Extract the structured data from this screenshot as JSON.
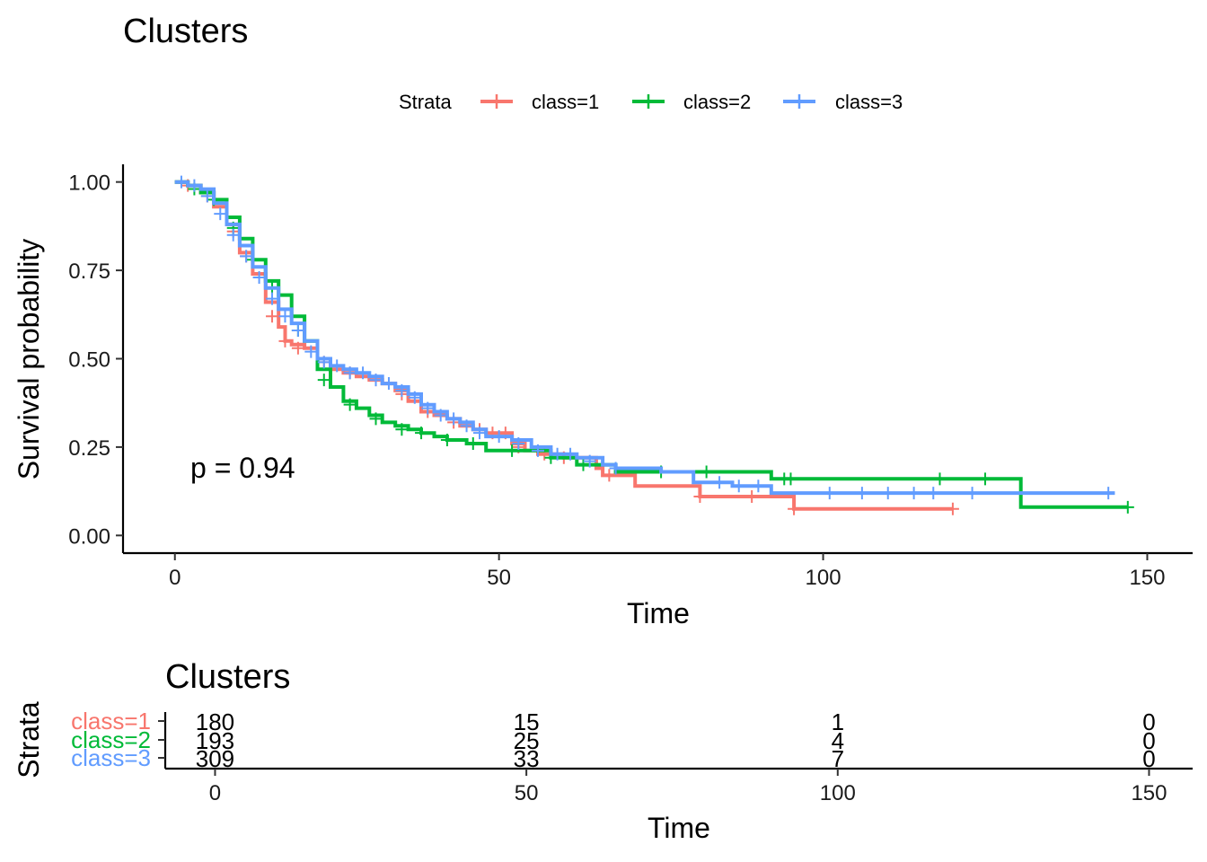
{
  "chart_data": [
    {
      "type": "line",
      "subtype": "kaplan-meier",
      "title": "Clusters",
      "xlabel": "Time",
      "ylabel": "Survival probability",
      "xlim": [
        -8,
        157
      ],
      "ylim": [
        -0.05,
        1.05
      ],
      "xticks": [
        0,
        50,
        100,
        150
      ],
      "yticks": [
        0.0,
        0.25,
        0.5,
        0.75,
        1.0
      ],
      "ytick_labels": [
        "0.00",
        "0.25",
        "0.50",
        "0.75",
        "1.00"
      ],
      "grid": false,
      "legend": {
        "title": "Strata",
        "position": "top"
      },
      "annotation": "p = 0.94",
      "series": [
        {
          "name": "class=1",
          "color": "#F8766D",
          "points": [
            [
              0,
              1.0
            ],
            [
              2,
              0.99
            ],
            [
              4,
              0.97
            ],
            [
              6,
              0.93
            ],
            [
              8,
              0.88
            ],
            [
              10,
              0.8
            ],
            [
              12,
              0.74
            ],
            [
              14,
              0.66
            ],
            [
              16,
              0.59
            ],
            [
              17,
              0.55
            ],
            [
              18,
              0.54
            ],
            [
              20,
              0.53
            ],
            [
              22,
              0.5
            ],
            [
              24,
              0.47
            ],
            [
              26,
              0.46
            ],
            [
              28,
              0.45
            ],
            [
              30,
              0.44
            ],
            [
              32,
              0.43
            ],
            [
              34,
              0.41
            ],
            [
              36,
              0.38
            ],
            [
              38,
              0.35
            ],
            [
              40,
              0.34
            ],
            [
              42,
              0.33
            ],
            [
              44,
              0.31
            ],
            [
              46,
              0.3
            ],
            [
              48,
              0.29
            ],
            [
              51,
              0.29
            ],
            [
              52,
              0.26
            ],
            [
              54,
              0.24
            ],
            [
              56,
              0.23
            ],
            [
              60,
              0.22
            ],
            [
              65,
              0.19
            ],
            [
              66,
              0.17
            ],
            [
              71,
              0.14
            ],
            [
              81,
              0.11
            ],
            [
              95.5,
              0.075
            ],
            [
              120,
              0.075
            ]
          ],
          "censor": [
            [
              2,
              0.99
            ],
            [
              5,
              0.96
            ],
            [
              9,
              0.86
            ],
            [
              11,
              0.79
            ],
            [
              15,
              0.62
            ],
            [
              17,
              0.55
            ],
            [
              19,
              0.53
            ],
            [
              23,
              0.49
            ],
            [
              27,
              0.46
            ],
            [
              31,
              0.44
            ],
            [
              35,
              0.4
            ],
            [
              39,
              0.35
            ],
            [
              43,
              0.32
            ],
            [
              47,
              0.3
            ],
            [
              49,
              0.29
            ],
            [
              51,
              0.29
            ],
            [
              53,
              0.25
            ],
            [
              57,
              0.23
            ],
            [
              60,
              0.22
            ],
            [
              67,
              0.17
            ],
            [
              81,
              0.11
            ],
            [
              89,
              0.11
            ],
            [
              95.5,
              0.075
            ],
            [
              120,
              0.075
            ]
          ]
        },
        {
          "name": "class=2",
          "color": "#00BA38",
          "points": [
            [
              0,
              1.0
            ],
            [
              2,
              0.99
            ],
            [
              4,
              0.97
            ],
            [
              6,
              0.95
            ],
            [
              8,
              0.9
            ],
            [
              10,
              0.84
            ],
            [
              12,
              0.78
            ],
            [
              14,
              0.72
            ],
            [
              16,
              0.68
            ],
            [
              18,
              0.62
            ],
            [
              20,
              0.55
            ],
            [
              22,
              0.47
            ],
            [
              24,
              0.42
            ],
            [
              26,
              0.38
            ],
            [
              28,
              0.36
            ],
            [
              30,
              0.34
            ],
            [
              32,
              0.32
            ],
            [
              34,
              0.31
            ],
            [
              36,
              0.3
            ],
            [
              38,
              0.29
            ],
            [
              40,
              0.28
            ],
            [
              42,
              0.27
            ],
            [
              45,
              0.26
            ],
            [
              48,
              0.24
            ],
            [
              55,
              0.24
            ],
            [
              58,
              0.22
            ],
            [
              62,
              0.2
            ],
            [
              68,
              0.18
            ],
            [
              91.5,
              0.18
            ],
            [
              92,
              0.16
            ],
            [
              130,
              0.16
            ],
            [
              130.5,
              0.08
            ],
            [
              147,
              0.08
            ]
          ],
          "censor": [
            [
              3,
              0.98
            ],
            [
              6,
              0.95
            ],
            [
              9,
              0.87
            ],
            [
              12,
              0.78
            ],
            [
              15,
              0.7
            ],
            [
              19,
              0.58
            ],
            [
              23,
              0.44
            ],
            [
              27,
              0.37
            ],
            [
              31,
              0.33
            ],
            [
              35,
              0.3
            ],
            [
              38,
              0.29
            ],
            [
              42,
              0.27
            ],
            [
              46,
              0.26
            ],
            [
              52,
              0.24
            ],
            [
              58,
              0.22
            ],
            [
              63,
              0.2
            ],
            [
              75,
              0.18
            ],
            [
              82,
              0.18
            ],
            [
              94,
              0.16
            ],
            [
              95,
              0.16
            ],
            [
              118,
              0.16
            ],
            [
              125,
              0.16
            ],
            [
              147,
              0.08
            ]
          ]
        },
        {
          "name": "class=3",
          "color": "#619CFF",
          "points": [
            [
              0,
              1.0
            ],
            [
              2,
              0.99
            ],
            [
              4,
              0.98
            ],
            [
              6,
              0.94
            ],
            [
              8,
              0.88
            ],
            [
              10,
              0.82
            ],
            [
              12,
              0.76
            ],
            [
              14,
              0.7
            ],
            [
              16,
              0.64
            ],
            [
              18,
              0.6
            ],
            [
              20,
              0.55
            ],
            [
              22,
              0.5
            ],
            [
              24,
              0.48
            ],
            [
              26,
              0.47
            ],
            [
              28,
              0.46
            ],
            [
              30,
              0.45
            ],
            [
              32,
              0.43
            ],
            [
              34,
              0.42
            ],
            [
              36,
              0.4
            ],
            [
              38,
              0.37
            ],
            [
              40,
              0.35
            ],
            [
              42,
              0.33
            ],
            [
              44,
              0.32
            ],
            [
              46,
              0.3
            ],
            [
              48,
              0.28
            ],
            [
              52,
              0.27
            ],
            [
              55,
              0.25
            ],
            [
              58,
              0.23
            ],
            [
              62,
              0.22
            ],
            [
              66,
              0.2
            ],
            [
              68,
              0.19
            ],
            [
              75,
              0.18
            ],
            [
              80,
              0.15
            ],
            [
              86,
              0.14
            ],
            [
              92,
              0.12
            ],
            [
              145,
              0.12
            ]
          ],
          "censor": [
            [
              1,
              1.0
            ],
            [
              3,
              0.99
            ],
            [
              5,
              0.96
            ],
            [
              7,
              0.91
            ],
            [
              9,
              0.85
            ],
            [
              11,
              0.79
            ],
            [
              13,
              0.73
            ],
            [
              15,
              0.67
            ],
            [
              17,
              0.62
            ],
            [
              19,
              0.58
            ],
            [
              21,
              0.52
            ],
            [
              23,
              0.49
            ],
            [
              25,
              0.48
            ],
            [
              27,
              0.46
            ],
            [
              29,
              0.46
            ],
            [
              31,
              0.44
            ],
            [
              33,
              0.43
            ],
            [
              35,
              0.41
            ],
            [
              37,
              0.39
            ],
            [
              39,
              0.36
            ],
            [
              41,
              0.34
            ],
            [
              43,
              0.33
            ],
            [
              45,
              0.31
            ],
            [
              47,
              0.29
            ],
            [
              50,
              0.28
            ],
            [
              53,
              0.26
            ],
            [
              56,
              0.24
            ],
            [
              59,
              0.23
            ],
            [
              61,
              0.23
            ],
            [
              64,
              0.21
            ],
            [
              68,
              0.19
            ],
            [
              84,
              0.15
            ],
            [
              87,
              0.14
            ],
            [
              90,
              0.14
            ],
            [
              101,
              0.12
            ],
            [
              106,
              0.12
            ],
            [
              110,
              0.12
            ],
            [
              114,
              0.12
            ],
            [
              117,
              0.12
            ],
            [
              123,
              0.12
            ],
            [
              144,
              0.12
            ]
          ]
        }
      ]
    },
    {
      "type": "table",
      "title": "Clusters",
      "xlabel": "Time",
      "ylabel": "Strata",
      "xlim": [
        -8,
        157
      ],
      "xticks": [
        0,
        50,
        100,
        150
      ],
      "rows": [
        {
          "name": "class=1",
          "color": "#F8766D",
          "values": [
            "180",
            "15",
            "1",
            "0"
          ]
        },
        {
          "name": "class=2",
          "color": "#00BA38",
          "values": [
            "193",
            "25",
            "4",
            "0"
          ]
        },
        {
          "name": "class=3",
          "color": "#619CFF",
          "values": [
            "309",
            "33",
            "7",
            "0"
          ]
        }
      ]
    }
  ]
}
